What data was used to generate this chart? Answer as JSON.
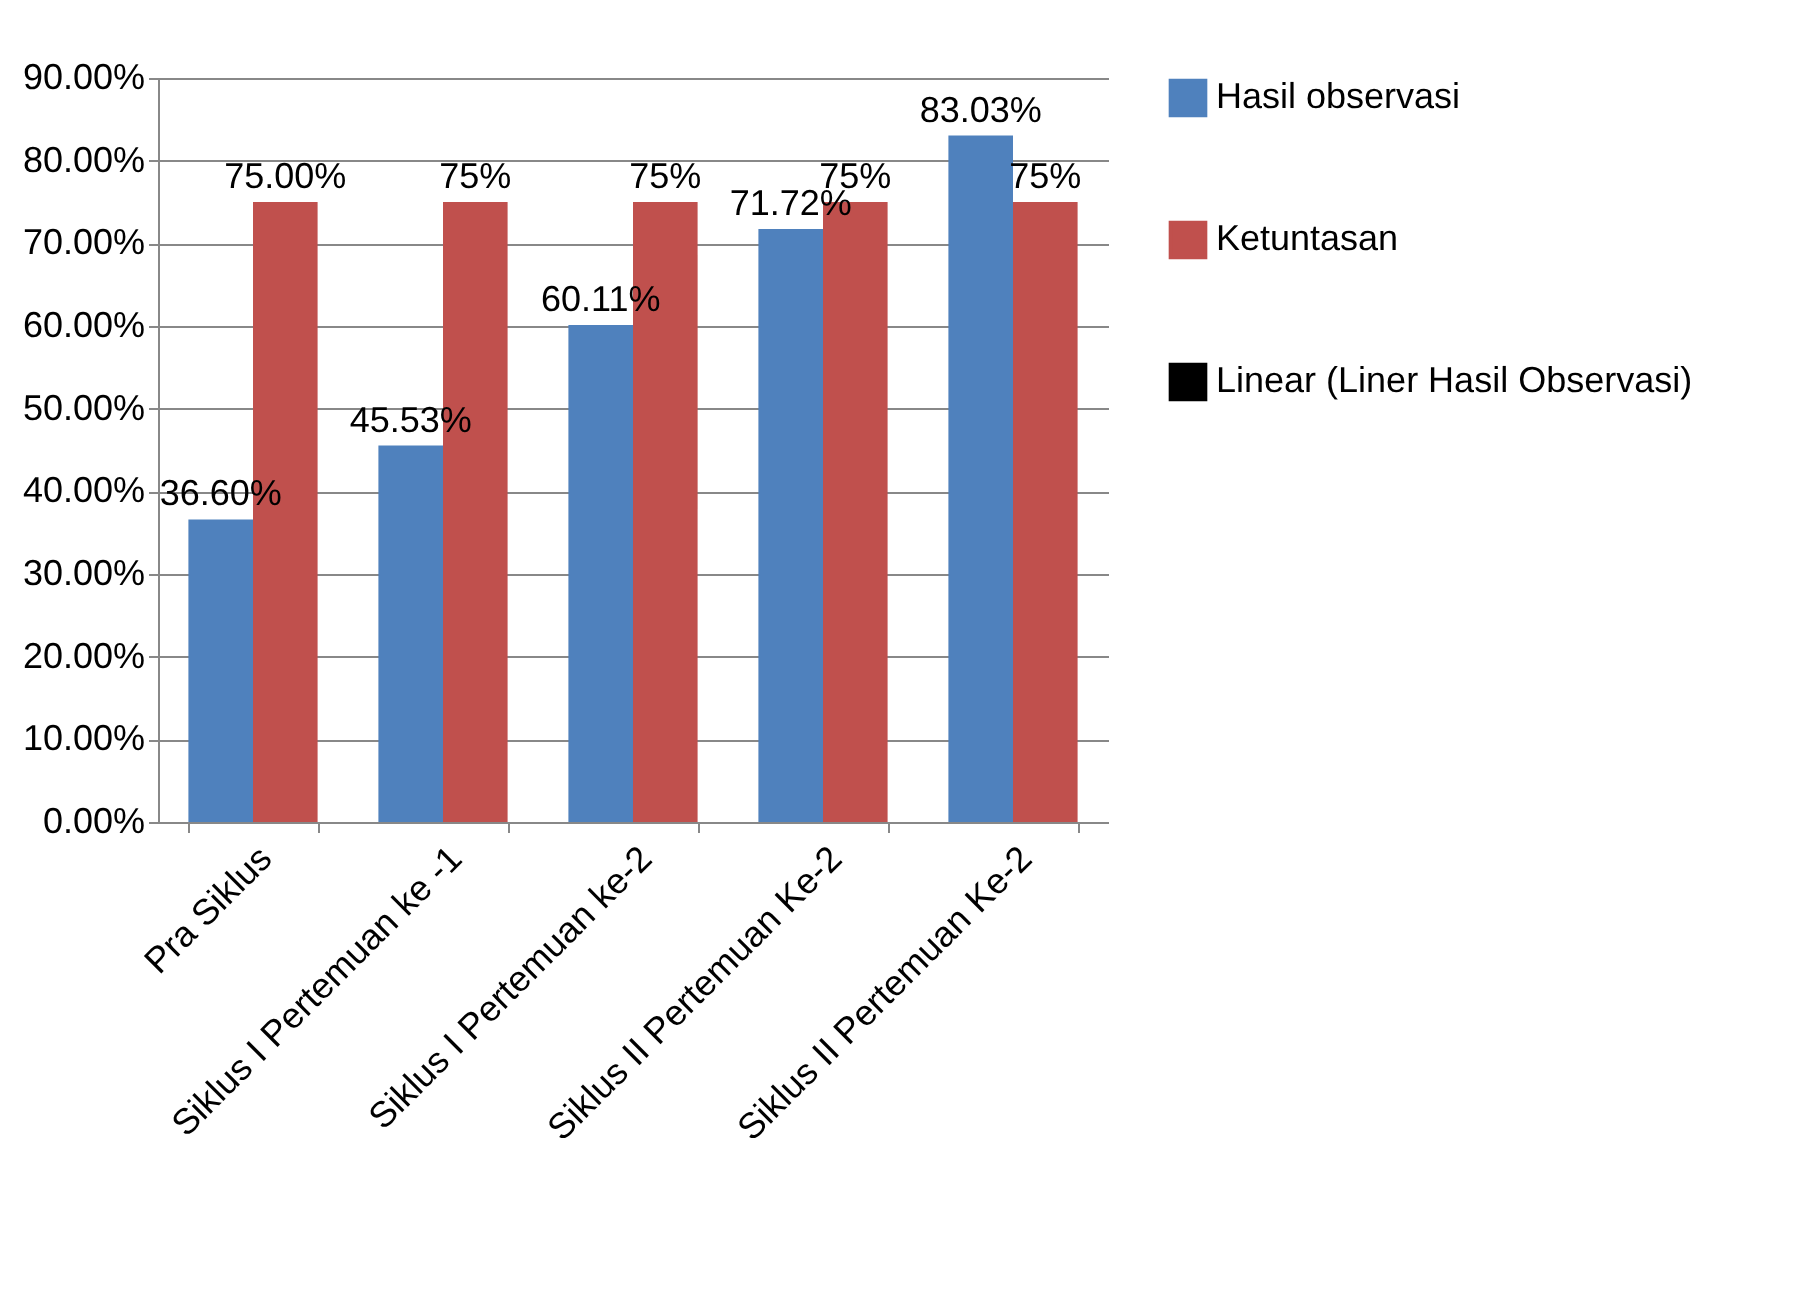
{
  "chart_data": {
    "type": "bar",
    "categories": [
      "Pra Siklus",
      "Siklus I Pertemuan ke -1",
      "Siklus I Pertemuan ke-2",
      "Siklus II Pertemuan Ke-2",
      "Siklus II Pertemuan Ke-2"
    ],
    "series": [
      {
        "name": "Hasil observasi",
        "color": "#4f81bd",
        "values": [
          36.6,
          45.53,
          60.11,
          71.72,
          83.03
        ],
        "value_labels": [
          "36.60%",
          "45.53%",
          "60.11%",
          "71.72%",
          "83.03%"
        ]
      },
      {
        "name": "Ketuntasan",
        "color": "#c0504d",
        "values": [
          75,
          75,
          75,
          75,
          75
        ],
        "value_labels": [
          "75.00%",
          "75%",
          "75%",
          "75%",
          "75%"
        ]
      },
      {
        "name": "Linear (Liner Hasil Observasi)",
        "type": "line",
        "color": "#000000",
        "values": [
          null,
          null,
          null,
          null,
          null
        ]
      }
    ],
    "ylim": [
      0,
      90
    ],
    "yticks": [
      {
        "value": 0,
        "label": "0.00%"
      },
      {
        "value": 10,
        "label": "10.00%"
      },
      {
        "value": 20,
        "label": "20.00%"
      },
      {
        "value": 30,
        "label": "30.00%"
      },
      {
        "value": 40,
        "label": "40.00%"
      },
      {
        "value": 50,
        "label": "50.00%"
      },
      {
        "value": 60,
        "label": "60.00%"
      },
      {
        "value": 70,
        "label": "70.00%"
      },
      {
        "value": 80,
        "label": "80.00%"
      },
      {
        "value": 90,
        "label": "90.00%"
      }
    ],
    "grid": "y",
    "legend": "right"
  }
}
